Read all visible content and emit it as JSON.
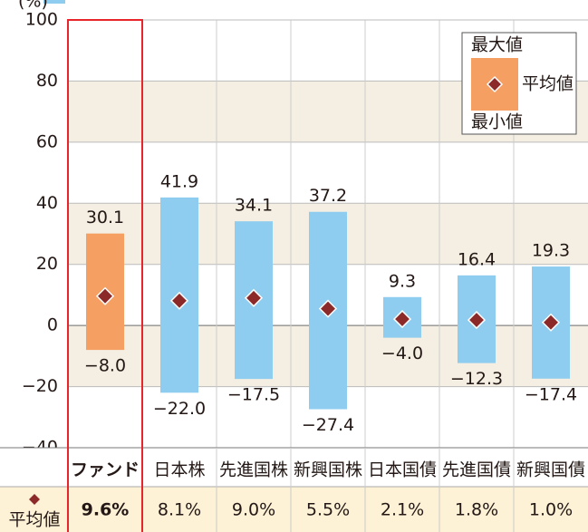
{
  "chart_data": {
    "type": "range",
    "y_label": "(%)",
    "categories": [
      "ファンド",
      "日本株",
      "先進国株",
      "新興国株",
      "日本国債",
      "先進国債",
      "新興国債"
    ],
    "bar_colors": [
      "#f5a062",
      "#8ecdef",
      "#8ecdef",
      "#8ecdef",
      "#8ecdef",
      "#8ecdef",
      "#8ecdef"
    ],
    "marker_color": "#8c2a2a",
    "highlight_color": "#e8252a",
    "series": [
      {
        "name": "最大値",
        "values": [
          30.1,
          41.9,
          34.1,
          37.2,
          9.3,
          16.4,
          19.3
        ]
      },
      {
        "name": "平均値",
        "values": [
          9.6,
          8.1,
          9.0,
          5.5,
          2.1,
          1.8,
          1.0
        ],
        "value_labels": [
          "9.6%",
          "8.1%",
          "9.0%",
          "5.5%",
          "2.1%",
          "1.8%",
          "1.0%"
        ]
      },
      {
        "name": "最小値",
        "values": [
          -8.0,
          -22.0,
          -17.5,
          -27.4,
          -4.0,
          -12.3,
          -17.4
        ],
        "value_labels": [
          "−8.0",
          "−22.0",
          "−17.5",
          "−27.4",
          "−4.0",
          "−12.3",
          "−17.4"
        ]
      }
    ],
    "ylim": [
      -40,
      100
    ],
    "yticks": [
      {
        "value": -40,
        "label": "−40"
      },
      {
        "value": -20,
        "label": "−20"
      },
      0,
      20,
      40,
      60,
      80,
      100
    ],
    "grid": true
  }
}
